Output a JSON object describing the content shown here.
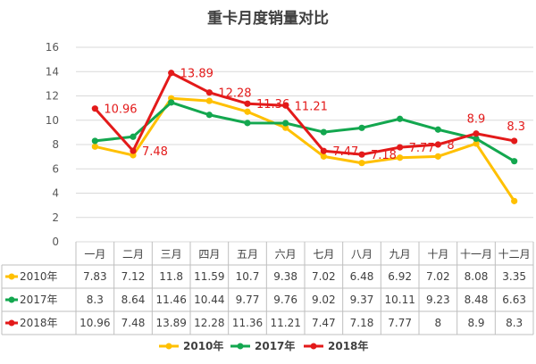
{
  "chart_data": {
    "type": "line",
    "title": "重卡月度销量对比",
    "categories": [
      "一月",
      "二月",
      "三月",
      "四月",
      "五月",
      "六月",
      "七月",
      "八月",
      "九月",
      "十月",
      "十一月",
      "十二月"
    ],
    "ylim": [
      0,
      16
    ],
    "yticks": [
      0,
      2,
      4,
      6,
      8,
      10,
      12,
      14,
      16
    ],
    "grid": true,
    "legend_position": "bottom",
    "data_table": true,
    "series": [
      {
        "name": "2010年",
        "legend_label": "2010年",
        "color": "#ffc000",
        "values": [
          7.83,
          7.12,
          11.8,
          11.59,
          10.7,
          9.38,
          7.02,
          6.48,
          6.92,
          7.02,
          8.08,
          3.35
        ],
        "cells": [
          "7.83",
          "7.12",
          "11.8",
          "11.59",
          "10.7",
          "9.38",
          "7.02",
          "6.48",
          "6.92",
          "7.02",
          "8.08",
          "3.35"
        ],
        "show_labels": false
      },
      {
        "name": "2017年",
        "legend_label": "2017年",
        "color": "#13a74f",
        "values": [
          8.3,
          8.64,
          11.46,
          10.44,
          9.77,
          9.76,
          9.02,
          9.37,
          10.11,
          9.23,
          8.48,
          6.63
        ],
        "cells": [
          "8.3",
          "8.64",
          "11.46",
          "10.44",
          "9.77",
          "9.76",
          "9.02",
          "9.37",
          "10.11",
          "9.23",
          "8.48",
          "6.63"
        ],
        "show_labels": false
      },
      {
        "name": "2018年",
        "legend_label": "2018年",
        "color": "#e31a1a",
        "values": [
          10.96,
          7.48,
          13.89,
          12.28,
          11.36,
          11.21,
          7.47,
          7.18,
          7.77,
          8,
          8.9,
          8.3
        ],
        "cells": [
          "10.96",
          "7.48",
          "13.89",
          "12.28",
          "11.36",
          "11.21",
          "7.47",
          "7.18",
          "7.77",
          "8",
          "8.9",
          "8.3"
        ],
        "show_labels": true
      }
    ]
  }
}
